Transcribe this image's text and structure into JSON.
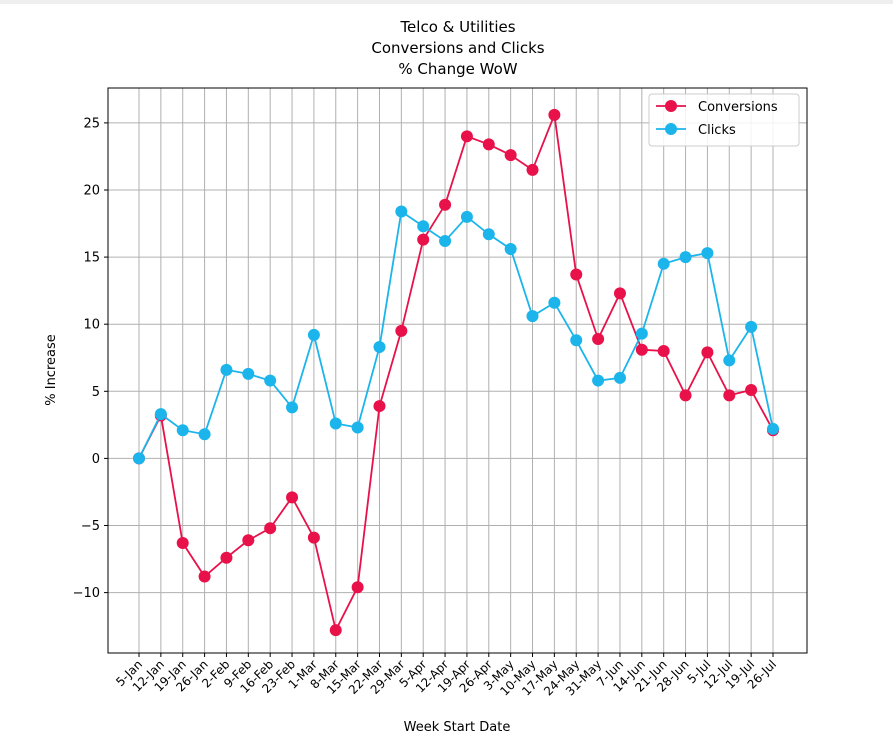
{
  "chart_data": {
    "type": "line",
    "title_lines": [
      "Telco & Utilities",
      "Conversions and Clicks",
      "% Change WoW"
    ],
    "xlabel": "Week Start Date",
    "ylabel": "% Increase",
    "ylim": [
      -14.5,
      27.6
    ],
    "yticks": [
      -10,
      -5,
      0,
      5,
      10,
      15,
      20,
      25
    ],
    "ytick_labels": [
      "−10",
      "−5",
      "0",
      "5",
      "10",
      "15",
      "20",
      "25"
    ],
    "grid": true,
    "legend_position": "upper-right",
    "categories": [
      "5-Jan",
      "12-Jan",
      "19-Jan",
      "26-Jan",
      "2-Feb",
      "9-Feb",
      "16-Feb",
      "23-Feb",
      "1-Mar",
      "8-Mar",
      "15-Mar",
      "22-Mar",
      "29-Mar",
      "5-Apr",
      "12-Apr",
      "19-Apr",
      "26-Apr",
      "3-May",
      "10-May",
      "17-May",
      "24-May",
      "31-May",
      "7-Jun",
      "14-Jun",
      "21-Jun",
      "28-Jun",
      "5-Jul",
      "12-Jul",
      "19-Jul",
      "26-Jul"
    ],
    "series": [
      {
        "name": "Conversions",
        "color": "#e8114a",
        "values": [
          0,
          3.2,
          -6.3,
          -8.8,
          -7.4,
          -6.1,
          -5.2,
          -2.9,
          -5.9,
          -12.8,
          -9.6,
          3.9,
          9.5,
          16.3,
          18.9,
          24.0,
          23.4,
          22.6,
          21.5,
          25.6,
          13.7,
          8.9,
          12.3,
          8.1,
          8.0,
          4.7,
          7.9,
          4.7,
          5.1,
          2.1
        ]
      },
      {
        "name": "Clicks",
        "color": "#1bb5ec",
        "values": [
          0,
          3.3,
          2.1,
          1.8,
          6.6,
          6.3,
          5.8,
          3.8,
          9.2,
          2.6,
          2.3,
          8.3,
          18.4,
          17.3,
          16.2,
          18.0,
          16.7,
          15.6,
          10.6,
          11.6,
          8.8,
          5.8,
          6.0,
          9.3,
          14.5,
          15.0,
          15.3,
          7.3,
          9.8,
          2.2
        ]
      }
    ]
  }
}
